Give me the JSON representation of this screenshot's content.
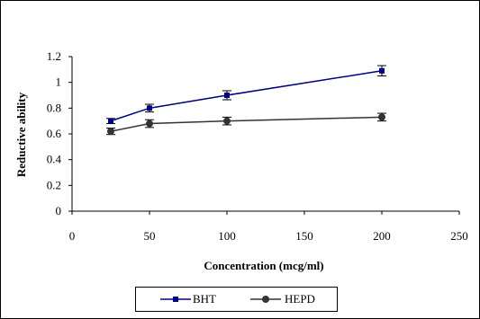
{
  "chart_data": {
    "type": "line",
    "title": "",
    "xlabel": "Concentration (mcg/ml)",
    "ylabel": "Reductive ability",
    "xlim": [
      0,
      250
    ],
    "ylim": [
      0,
      1.2
    ],
    "x_ticks": [
      "0",
      "50",
      "100",
      "150",
      "200",
      "250"
    ],
    "y_ticks": [
      "0",
      "0.2",
      "0.4",
      "0.6",
      "0.8",
      "1",
      "1.2"
    ],
    "grid": false,
    "legend_position": "bottom",
    "series": [
      {
        "name": "BHT",
        "color": "#000080",
        "marker": "square",
        "x": [
          25,
          50,
          100,
          200
        ],
        "y": [
          0.7,
          0.8,
          0.9,
          1.09
        ],
        "error": [
          0.02,
          0.03,
          0.035,
          0.04
        ]
      },
      {
        "name": "HEPD",
        "color": "#333333",
        "marker": "circle",
        "x": [
          25,
          50,
          100,
          200
        ],
        "y": [
          0.62,
          0.68,
          0.7,
          0.73
        ],
        "error": [
          0.025,
          0.03,
          0.03,
          0.03
        ]
      }
    ]
  }
}
